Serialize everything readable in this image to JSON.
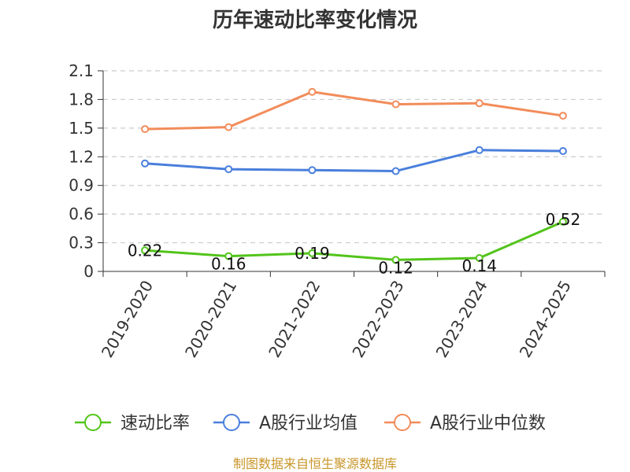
{
  "chart_data": {
    "type": "line",
    "title": "历年速动比率变化情况",
    "xlabel": "",
    "ylabel": "",
    "categories": [
      "2019-2020",
      "2020-2021",
      "2021-2022",
      "2022-2023",
      "2023-2024",
      "2024-2025"
    ],
    "ylim": [
      0,
      2.1
    ],
    "yticks": [
      "0",
      "0.3",
      "0.6",
      "0.9",
      "1.2",
      "1.5",
      "1.8",
      "2.1"
    ],
    "grid": true,
    "legend_position": "bottom",
    "series": [
      {
        "name": "速动比率",
        "values": [
          0.22,
          0.16,
          0.19,
          0.12,
          0.14,
          0.52
        ],
        "labels": [
          "0.22",
          "0.16",
          "0.19",
          "0.12",
          "0.14",
          "0.52"
        ],
        "color": "#52c41a"
      },
      {
        "name": "A股行业均值",
        "values": [
          1.13,
          1.07,
          1.06,
          1.05,
          1.27,
          1.26
        ],
        "color": "#4a7fdc"
      },
      {
        "name": "A股行业中位数",
        "values": [
          1.49,
          1.51,
          1.88,
          1.75,
          1.76,
          1.63
        ],
        "color": "#f28c5a"
      }
    ]
  },
  "source": "制图数据来自恒生聚源数据库"
}
